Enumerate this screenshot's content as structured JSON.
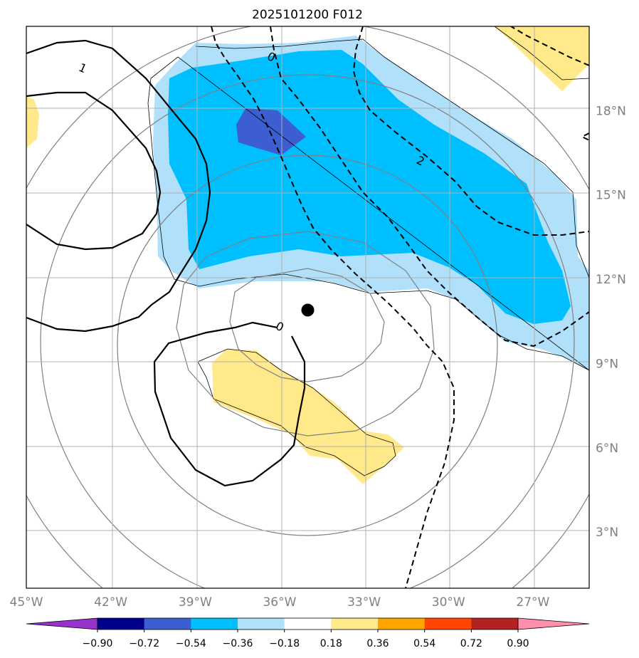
{
  "chart_data": {
    "type": "map_contour",
    "title": "2025101200 F012",
    "lon_ticks": [
      "45°W",
      "42°W",
      "39°W",
      "36°W",
      "33°W",
      "30°W",
      "27°W"
    ],
    "lat_ticks": [
      "3°N",
      "6°N",
      "9°N",
      "12°N",
      "15°N",
      "18°N"
    ],
    "lon_range": [
      -45,
      -25
    ],
    "lat_range": [
      1,
      21
    ],
    "grid": true,
    "center_marker": {
      "lon": -35.0,
      "lat": 10.9
    },
    "range_rings_deg": [
      3,
      6,
      9,
      12
    ],
    "contour_labels": [
      {
        "text": "1",
        "lon": -43.0,
        "lat": 19.5
      },
      {
        "text": "0",
        "lon": -36.3,
        "lat": 19.9
      },
      {
        "text": "2",
        "lon": -31.0,
        "lat": 16.2
      },
      {
        "text": "0",
        "lon": -36.0,
        "lat": 10.3
      }
    ],
    "colorbar": {
      "ticks": [
        "−0.90",
        "−0.72",
        "−0.54",
        "−0.36",
        "−0.18",
        "0.18",
        "0.36",
        "0.54",
        "0.72",
        "0.90"
      ],
      "colors": [
        "#9932cc",
        "#00008b",
        "#3d5ed1",
        "#00bfff",
        "#b0e0fa",
        "#ffffff",
        "#ffe98a",
        "#ffa500",
        "#ff4500",
        "#b22222",
        "#ff8fab"
      ],
      "extend": "both"
    }
  }
}
